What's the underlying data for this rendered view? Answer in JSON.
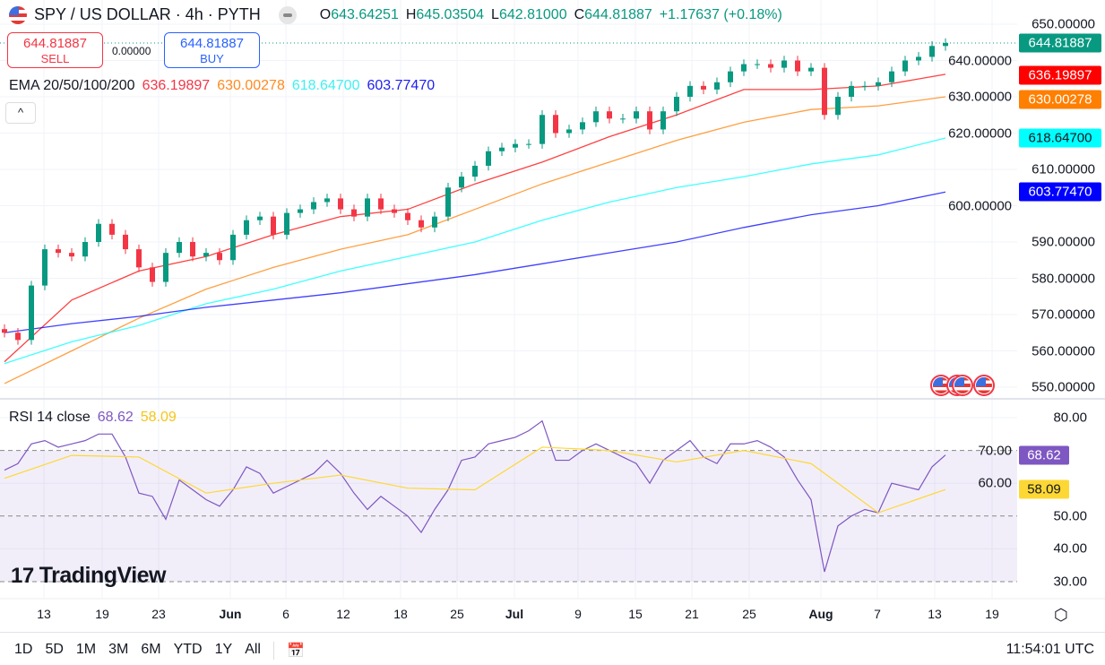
{
  "header": {
    "symbol": "SPY / US DOLLAR · 4h · PYTH",
    "open_label": "O",
    "open": "643.64251",
    "high_label": "H",
    "high": "645.03504",
    "low_label": "L",
    "low": "642.81000",
    "close_label": "C",
    "close": "644.81887",
    "change": "+1.17637 (+0.18%)"
  },
  "trade": {
    "sell_price": "644.81887",
    "sell_label": "SELL",
    "spread": "0.00000",
    "buy_price": "644.81887",
    "buy_label": "BUY"
  },
  "ema_legend": {
    "label": "EMA 20/50/100/200",
    "ema20": "636.19897",
    "ema50": "630.00278",
    "ema100": "618.64700",
    "ema200": "603.77470"
  },
  "collapse_icon": "chevron-up-icon",
  "collapse_glyph": "^",
  "rsi_legend": {
    "label": "RSI 14 close",
    "rsi": "68.62",
    "ma": "58.09"
  },
  "price_axis": [
    "650.00000",
    "640.00000",
    "630.00000",
    "620.00000",
    "610.00000",
    "600.00000",
    "590.00000",
    "580.00000",
    "570.00000",
    "560.00000",
    "550.00000"
  ],
  "rsi_axis": [
    "80.00",
    "70.00",
    "60.00",
    "50.00",
    "40.00",
    "30.00"
  ],
  "price_tags": {
    "last": "644.81887",
    "ema20": "636.19897",
    "ema50": "630.00278",
    "ema100": "618.64700",
    "ema200": "603.77470"
  },
  "rsi_tags": {
    "rsi": "68.62",
    "ma": "58.09"
  },
  "time_axis": [
    {
      "label": "13",
      "bold": false
    },
    {
      "label": "19",
      "bold": false
    },
    {
      "label": "23",
      "bold": false
    },
    {
      "label": "Jun",
      "bold": true
    },
    {
      "label": "6",
      "bold": false
    },
    {
      "label": "12",
      "bold": false
    },
    {
      "label": "18",
      "bold": false
    },
    {
      "label": "25",
      "bold": false
    },
    {
      "label": "Jul",
      "bold": true
    },
    {
      "label": "9",
      "bold": false
    },
    {
      "label": "15",
      "bold": false
    },
    {
      "label": "21",
      "bold": false
    },
    {
      "label": "25",
      "bold": false
    },
    {
      "label": "Aug",
      "bold": true
    },
    {
      "label": "7",
      "bold": false
    },
    {
      "label": "13",
      "bold": false
    },
    {
      "label": "19",
      "bold": false
    }
  ],
  "ranges": [
    "1D",
    "5D",
    "1M",
    "3M",
    "6M",
    "YTD",
    "1Y",
    "All"
  ],
  "logo": "TradingView",
  "clock": "11:54:01 UTC",
  "colors": {
    "up": "#089981",
    "down": "#f23645",
    "ema20": "#ff0000",
    "ema50": "#ff7f00",
    "ema100": "#00ffff",
    "ema200": "#0000ff",
    "rsi": "#7e57c2",
    "rsi_ma": "#fdd835",
    "rsi_band": "#7e57c21a"
  },
  "chart_data": [
    {
      "type": "candlestick",
      "title": "SPY / US DOLLAR · 4h · PYTH",
      "ylim": [
        550,
        650
      ],
      "grid": true,
      "closes": [
        565,
        563,
        578,
        588,
        587,
        586,
        590,
        595,
        592,
        588,
        583,
        579,
        587,
        590,
        586,
        587,
        585,
        592,
        596,
        597,
        592,
        598,
        599,
        601,
        602,
        599,
        597,
        602,
        599,
        598,
        596,
        594,
        597,
        605,
        608,
        611,
        615,
        616,
        617,
        617,
        625,
        620,
        621,
        623,
        626,
        624,
        624,
        626,
        621,
        626,
        630,
        633,
        632,
        634,
        637,
        639,
        639,
        638,
        640,
        637,
        638,
        625,
        630,
        633,
        633,
        634,
        637,
        640,
        641,
        644,
        644.81887
      ],
      "first_open": 566,
      "overlays_every_5th_candle": {
        "EMA 20": [
          557,
          574,
          582,
          586,
          592,
          597,
          599,
          606,
          612,
          619,
          625,
          632,
          632,
          633,
          636.19897
        ],
        "EMA 50": [
          551,
          560,
          569,
          577,
          583,
          588,
          592,
          599,
          606,
          612,
          618,
          623,
          626.5,
          627.5,
          630.00278
        ],
        "EMA 100": [
          556.5,
          562.5,
          567,
          573,
          577,
          582,
          586,
          590,
          596,
          601,
          605,
          608,
          611.5,
          614,
          618.647
        ],
        "EMA 200": [
          565,
          567.5,
          569.5,
          572,
          574,
          576,
          578.5,
          581,
          584,
          587,
          590,
          594,
          597.5,
          600,
          603.7747
        ]
      }
    },
    {
      "type": "line",
      "title": "RSI 14 close",
      "ylim": [
        30,
        80
      ],
      "bands": [
        70,
        50,
        30
      ],
      "rsi": [
        64,
        66,
        72,
        73,
        71,
        72,
        73,
        75,
        75,
        68,
        57,
        56,
        49,
        61,
        58,
        55,
        53,
        58,
        65,
        63,
        57,
        59,
        61,
        63,
        67,
        63,
        57,
        52,
        56,
        53,
        50,
        45,
        52,
        58,
        67,
        68,
        72,
        73,
        74,
        76,
        79,
        67,
        67,
        70,
        72,
        70,
        68,
        66,
        60,
        67,
        70,
        73,
        68,
        66,
        72,
        72,
        73,
        71,
        68,
        61,
        55,
        33,
        47,
        50,
        52,
        51,
        60,
        59,
        58,
        65,
        68.62
      ],
      "rsi_ma_every_5th": [
        61.5,
        68.5,
        68,
        57,
        60,
        62.5,
        58.5,
        58,
        71,
        70,
        66.5,
        70,
        66,
        51,
        58.09
      ]
    }
  ]
}
